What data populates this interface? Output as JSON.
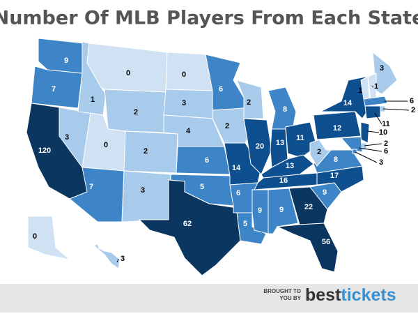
{
  "title": "Number Of MLB Players From Each State",
  "map": {
    "states": [
      {
        "value": 9,
        "color": "#3d85c6"
      },
      {
        "value": 7,
        "color": "#3d85c6"
      },
      {
        "value": 120,
        "color": "#0b3660"
      },
      {
        "value": 3,
        "color": "#a8cbeb"
      },
      {
        "value": 1,
        "color": "#a8cbeb"
      },
      {
        "value": 0,
        "color": "#cfe1f2"
      },
      {
        "value": 2,
        "color": "#a8cbeb"
      },
      {
        "value": 0,
        "color": "#cfe1f2"
      },
      {
        "value": 7,
        "color": "#3d85c6"
      },
      {
        "value": 2,
        "color": "#a8cbeb"
      },
      {
        "value": 3,
        "color": "#a8cbeb"
      },
      {
        "value": 0,
        "color": "#cfe1f2"
      },
      {
        "value": 3,
        "color": "#a8cbeb"
      },
      {
        "value": 4,
        "color": "#a8cbeb"
      },
      {
        "value": 6,
        "color": "#3d85c6"
      },
      {
        "value": 5,
        "color": "#3d85c6"
      },
      {
        "value": 62,
        "color": "#0b3660"
      },
      {
        "value": 6,
        "color": "#3d85c6"
      },
      {
        "value": 2,
        "color": "#a8cbeb"
      },
      {
        "value": 14,
        "color": "#0e4f8f"
      },
      {
        "value": 6,
        "color": "#3d85c6"
      },
      {
        "value": 5,
        "color": "#3d85c6"
      },
      {
        "value": 2,
        "color": "#a8cbeb"
      },
      {
        "value": 20,
        "color": "#0e4f8f"
      },
      {
        "value": 8,
        "color": "#3d85c6"
      },
      {
        "value": 13,
        "color": "#0e4f8f"
      },
      {
        "value": 11,
        "color": "#0e4f8f"
      },
      {
        "value": 13,
        "color": "#0e4f8f"
      },
      {
        "value": 16,
        "color": "#0e4f8f"
      },
      {
        "value": 9,
        "color": "#3d85c6"
      },
      {
        "value": 9,
        "color": "#3d85c6"
      },
      {
        "value": 22,
        "color": "#0b3660"
      },
      {
        "value": 56,
        "color": "#0b3660"
      },
      {
        "value": 9,
        "color": "#3d85c6"
      },
      {
        "value": 17,
        "color": "#0e4f8f"
      },
      {
        "value": 8,
        "color": "#3d85c6"
      },
      {
        "value": 2,
        "color": "#a8cbeb"
      },
      {
        "value": 12,
        "color": "#0e4f8f"
      },
      {
        "value": 14,
        "color": "#0e4f8f"
      },
      {
        "value": 3,
        "color": "#a8cbeb"
      },
      {
        "value": 1,
        "color": "#cfe1f2"
      },
      {
        "value": 1,
        "color": "#cfe1f2"
      },
      {
        "value": 6,
        "color": "#3d85c6"
      },
      {
        "value": 2,
        "color": "#a8cbeb"
      },
      {
        "value": 11,
        "color": "#0e4f8f"
      },
      {
        "value": 10,
        "color": "#0e4f8f"
      },
      {
        "value": 2,
        "color": "#a8cbeb"
      },
      {
        "value": 6,
        "color": "#3d85c6"
      },
      {
        "value": 3,
        "color": "#3d85c6"
      },
      {
        "value": 0,
        "color": "#cfe1f2"
      },
      {
        "value": 3,
        "color": "#a8cbeb"
      }
    ]
  },
  "footer": {
    "line1": "BROUGHT TO",
    "line2": "YOU BY",
    "logo_a": "best",
    "logo_b": "tickets"
  }
}
